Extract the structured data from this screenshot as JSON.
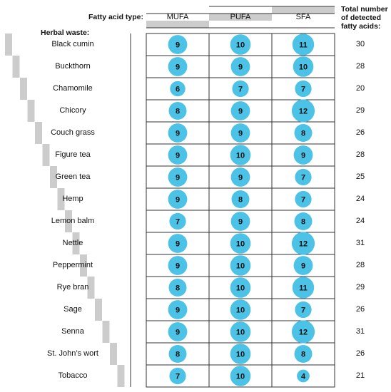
{
  "header": {
    "fatty_acid_label": "Fatty acid type:",
    "herbal_label": "Herbal waste:",
    "total_lines": [
      "Total number",
      "of detected",
      "fatty acids:"
    ]
  },
  "colors": {
    "bubble": "#4cc3e6",
    "bar": "#cccccc",
    "line": "#333333"
  },
  "chart_data": {
    "type": "table",
    "columns": [
      "MUFA",
      "PUFA",
      "SFA"
    ],
    "rows": [
      {
        "name": "Black cumin",
        "values": [
          9,
          10,
          11
        ],
        "total": 30
      },
      {
        "name": "Buckthorn",
        "values": [
          9,
          9,
          10
        ],
        "total": 28
      },
      {
        "name": "Chamomile",
        "values": [
          6,
          7,
          7
        ],
        "total": 20
      },
      {
        "name": "Chicory",
        "values": [
          8,
          9,
          12
        ],
        "total": 29
      },
      {
        "name": "Couch grass",
        "values": [
          9,
          9,
          8
        ],
        "total": 26
      },
      {
        "name": "Figure tea",
        "values": [
          9,
          10,
          9
        ],
        "total": 28
      },
      {
        "name": "Green tea",
        "values": [
          9,
          9,
          7
        ],
        "total": 25
      },
      {
        "name": "Hemp",
        "values": [
          9,
          8,
          7
        ],
        "total": 24
      },
      {
        "name": "Lemon balm",
        "values": [
          7,
          9,
          8
        ],
        "total": 24
      },
      {
        "name": "Nettle",
        "values": [
          9,
          10,
          12
        ],
        "total": 31
      },
      {
        "name": "Peppermint",
        "values": [
          9,
          10,
          9
        ],
        "total": 28
      },
      {
        "name": "Rye bran",
        "values": [
          8,
          10,
          11
        ],
        "total": 29
      },
      {
        "name": "Sage",
        "values": [
          9,
          10,
          7
        ],
        "total": 26
      },
      {
        "name": "Senna",
        "values": [
          9,
          10,
          12
        ],
        "total": 31
      },
      {
        "name": "St. John’s wort",
        "values": [
          8,
          10,
          8
        ],
        "total": 26
      },
      {
        "name": "Tobacco",
        "values": [
          7,
          10,
          4
        ],
        "total": 21
      }
    ]
  }
}
